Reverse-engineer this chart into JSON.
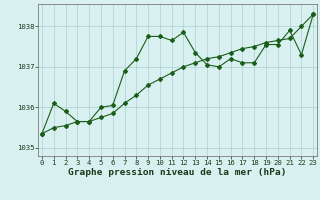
{
  "x": [
    0,
    1,
    2,
    3,
    4,
    5,
    6,
    7,
    8,
    9,
    10,
    11,
    12,
    13,
    14,
    15,
    16,
    17,
    18,
    19,
    20,
    21,
    22,
    23
  ],
  "line1": [
    1035.35,
    1036.1,
    1035.9,
    1035.65,
    1035.65,
    1036.0,
    1036.05,
    1036.9,
    1037.2,
    1037.75,
    1037.75,
    1037.65,
    1037.85,
    1037.35,
    1037.05,
    1037.0,
    1037.2,
    1037.1,
    1037.1,
    1037.55,
    1037.55,
    1037.9,
    1037.3,
    1038.3
  ],
  "line2": [
    1035.35,
    1035.5,
    1035.55,
    1035.65,
    1035.65,
    1035.75,
    1035.85,
    1036.1,
    1036.3,
    1036.55,
    1036.7,
    1036.85,
    1037.0,
    1037.1,
    1037.2,
    1037.25,
    1037.35,
    1037.45,
    1037.5,
    1037.6,
    1037.65,
    1037.7,
    1038.0,
    1038.3
  ],
  "line_color": "#1a5e1a",
  "bg_color": "#d9f0f0",
  "grid_color": "#b0d0d0",
  "xlabel": "Graphe pression niveau de la mer (hPa)",
  "ylim": [
    1034.8,
    1038.55
  ],
  "xlim": [
    -0.3,
    23.3
  ],
  "yticks": [
    1035,
    1036,
    1037,
    1038
  ],
  "xticks": [
    0,
    1,
    2,
    3,
    4,
    5,
    6,
    7,
    8,
    9,
    10,
    11,
    12,
    13,
    14,
    15,
    16,
    17,
    18,
    19,
    20,
    21,
    22,
    23
  ],
  "tick_fontsize": 5.2,
  "xlabel_fontsize": 6.8
}
